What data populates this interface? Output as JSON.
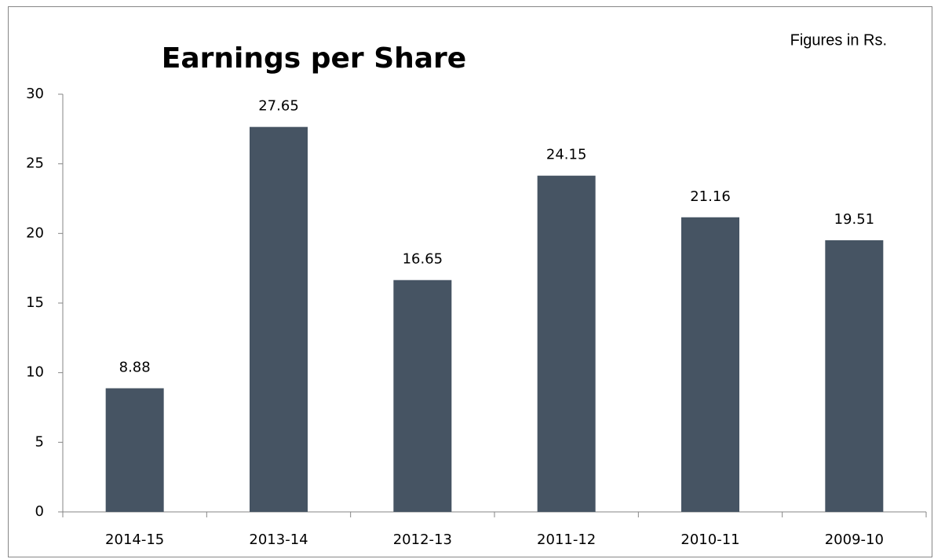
{
  "chart_data": {
    "type": "bar",
    "title": "Earnings per Share",
    "annotation": "Figures in Rs.",
    "categories": [
      "2014-15",
      "2013-14",
      "2012-13",
      "2011-12",
      "2010-11",
      "2009-10"
    ],
    "values": [
      8.88,
      27.65,
      16.65,
      24.15,
      21.16,
      19.51
    ],
    "color": "#465463",
    "ylim": [
      0,
      30
    ],
    "yticks": [
      0,
      5,
      10,
      15,
      20,
      25,
      30
    ],
    "grid": false
  }
}
